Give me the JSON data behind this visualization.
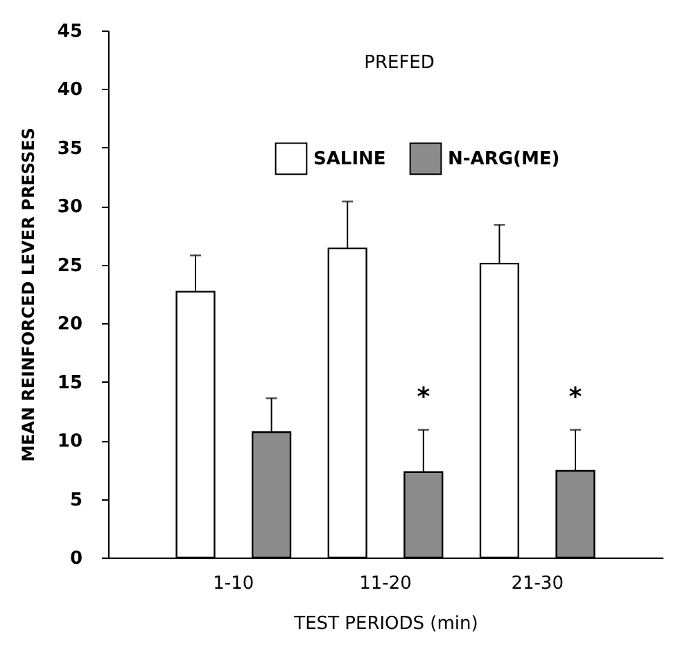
{
  "chart_data": {
    "type": "bar",
    "title": "PREFED",
    "xlabel": "TEST PERIODS (min)",
    "ylabel": "MEAN REINFORCED LEVER PRESSES",
    "categories": [
      "1-10",
      "11-20",
      "21-30"
    ],
    "series": [
      {
        "name": "SALINE",
        "color": "#ffffff",
        "values": [
          22.7,
          26.4,
          25.1
        ],
        "errors": [
          3.1,
          4.0,
          3.3
        ]
      },
      {
        "name": "N-ARG(ME)",
        "color": "#8c8c8c",
        "values": [
          10.7,
          7.3,
          7.4
        ],
        "errors": [
          2.9,
          3.6,
          3.5
        ]
      }
    ],
    "annotations": [
      "*",
      "*"
    ],
    "ylim": [
      0,
      45
    ],
    "yticks": [
      0,
      5,
      10,
      15,
      20,
      25,
      30,
      35,
      40,
      45
    ],
    "grid": false,
    "legend": "top"
  }
}
